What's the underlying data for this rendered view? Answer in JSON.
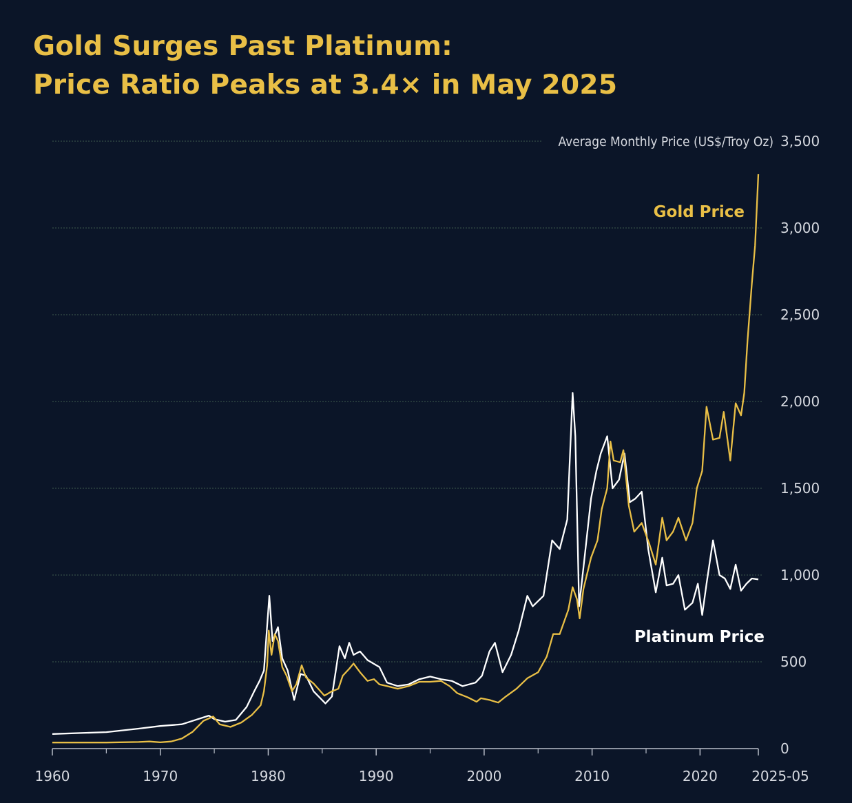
{
  "title": {
    "line1": "Gold Surges Past Platinum:",
    "line2": "Price Ratio Peaks at 3.4× in May 2025"
  },
  "colors": {
    "background": "#0b1528",
    "gold": "#e9bf46",
    "platinum": "#ffffff",
    "grid": "#3f5a4e",
    "text": "#d6d9e0"
  },
  "chart_data": {
    "type": "line",
    "title": "Gold Surges Past Platinum: Price Ratio Peaks at 3.4× in May 2025",
    "ylabel": "Average Monthly Price (US$/Troy Oz)",
    "xlabel": "",
    "xlim": [
      1960,
      2025.4
    ],
    "ylim": [
      0,
      3500
    ],
    "grid": true,
    "y_ticks": [
      0,
      500,
      1000,
      1500,
      2000,
      2500,
      3000,
      3500
    ],
    "y_tick_labels": [
      "0",
      "500",
      "1,000",
      "1,500",
      "2,000",
      "2,500",
      "3,000",
      "3,500"
    ],
    "x_ticks": [
      1960,
      1970,
      1980,
      1990,
      2000,
      2010,
      2020,
      2025.4
    ],
    "x_tick_labels": [
      "1960",
      "1970",
      "1980",
      "1990",
      "2000",
      "2010",
      "2020",
      "2025-05"
    ],
    "x_minor_ticks": [
      1965,
      1975,
      1985,
      1995,
      2005,
      2015
    ],
    "series": [
      {
        "name": "Gold Price",
        "points": [
          [
            1960,
            35
          ],
          [
            1965,
            35
          ],
          [
            1968,
            38
          ],
          [
            1969,
            41
          ],
          [
            1970,
            36
          ],
          [
            1971,
            41
          ],
          [
            1972,
            58
          ],
          [
            1973,
            97
          ],
          [
            1974,
            160
          ],
          [
            1974.9,
            185
          ],
          [
            1975.5,
            140
          ],
          [
            1976.5,
            125
          ],
          [
            1977.5,
            150
          ],
          [
            1978.5,
            195
          ],
          [
            1979.3,
            250
          ],
          [
            1979.6,
            330
          ],
          [
            1979.9,
            480
          ],
          [
            1980.05,
            680
          ],
          [
            1980.3,
            540
          ],
          [
            1980.6,
            660
          ],
          [
            1980.9,
            620
          ],
          [
            1981.3,
            470
          ],
          [
            1981.7,
            420
          ],
          [
            1982.2,
            330
          ],
          [
            1982.6,
            370
          ],
          [
            1983.1,
            480
          ],
          [
            1983.5,
            410
          ],
          [
            1984.2,
            375
          ],
          [
            1985.2,
            305
          ],
          [
            1985.9,
            330
          ],
          [
            1986.5,
            345
          ],
          [
            1986.9,
            420
          ],
          [
            1987.5,
            460
          ],
          [
            1987.9,
            490
          ],
          [
            1988.5,
            440
          ],
          [
            1989.2,
            390
          ],
          [
            1989.8,
            400
          ],
          [
            1990.3,
            370
          ],
          [
            1991,
            360
          ],
          [
            1992,
            345
          ],
          [
            1993,
            360
          ],
          [
            1994,
            385
          ],
          [
            1995,
            385
          ],
          [
            1996,
            390
          ],
          [
            1996.8,
            360
          ],
          [
            1997.5,
            320
          ],
          [
            1998.5,
            295
          ],
          [
            1999.3,
            270
          ],
          [
            1999.7,
            290
          ],
          [
            2000.5,
            280
          ],
          [
            2001.3,
            265
          ],
          [
            2002,
            300
          ],
          [
            2003,
            345
          ],
          [
            2004,
            405
          ],
          [
            2005,
            440
          ],
          [
            2005.8,
            530
          ],
          [
            2006.4,
            660
          ],
          [
            2007,
            660
          ],
          [
            2007.8,
            800
          ],
          [
            2008.2,
            930
          ],
          [
            2008.6,
            860
          ],
          [
            2008.85,
            750
          ],
          [
            2009.2,
            920
          ],
          [
            2009.9,
            1100
          ],
          [
            2010.5,
            1200
          ],
          [
            2010.9,
            1380
          ],
          [
            2011.4,
            1500
          ],
          [
            2011.7,
            1770
          ],
          [
            2012,
            1660
          ],
          [
            2012.6,
            1650
          ],
          [
            2012.9,
            1720
          ],
          [
            2013.4,
            1400
          ],
          [
            2013.9,
            1250
          ],
          [
            2014.6,
            1300
          ],
          [
            2015.3,
            1180
          ],
          [
            2015.9,
            1060
          ],
          [
            2016.5,
            1330
          ],
          [
            2016.9,
            1200
          ],
          [
            2017.5,
            1250
          ],
          [
            2018,
            1330
          ],
          [
            2018.7,
            1200
          ],
          [
            2019.3,
            1300
          ],
          [
            2019.7,
            1500
          ],
          [
            2020.2,
            1600
          ],
          [
            2020.6,
            1970
          ],
          [
            2021.2,
            1780
          ],
          [
            2021.8,
            1790
          ],
          [
            2022.2,
            1940
          ],
          [
            2022.8,
            1660
          ],
          [
            2023.3,
            1990
          ],
          [
            2023.8,
            1920
          ],
          [
            2024.1,
            2050
          ],
          [
            2024.4,
            2350
          ],
          [
            2024.8,
            2680
          ],
          [
            2025.1,
            2900
          ],
          [
            2025.4,
            3310
          ]
        ]
      },
      {
        "name": "Platinum Price",
        "points": [
          [
            1960,
            84
          ],
          [
            1965,
            95
          ],
          [
            1968,
            115
          ],
          [
            1970,
            130
          ],
          [
            1972,
            140
          ],
          [
            1973,
            160
          ],
          [
            1974.5,
            190
          ],
          [
            1975,
            170
          ],
          [
            1976,
            155
          ],
          [
            1977,
            165
          ],
          [
            1978,
            240
          ],
          [
            1978.7,
            330
          ],
          [
            1979.2,
            390
          ],
          [
            1979.6,
            450
          ],
          [
            1980.1,
            880
          ],
          [
            1980.4,
            620
          ],
          [
            1980.9,
            700
          ],
          [
            1981.3,
            520
          ],
          [
            1981.8,
            450
          ],
          [
            1982.4,
            280
          ],
          [
            1983,
            430
          ],
          [
            1983.5,
            420
          ],
          [
            1984.2,
            330
          ],
          [
            1985.3,
            260
          ],
          [
            1985.9,
            300
          ],
          [
            1986.6,
            590
          ],
          [
            1987.1,
            520
          ],
          [
            1987.5,
            610
          ],
          [
            1987.9,
            540
          ],
          [
            1988.5,
            560
          ],
          [
            1989.2,
            510
          ],
          [
            1990.3,
            470
          ],
          [
            1991,
            380
          ],
          [
            1992,
            360
          ],
          [
            1993,
            370
          ],
          [
            1994,
            400
          ],
          [
            1995,
            415
          ],
          [
            1996,
            400
          ],
          [
            1997,
            390
          ],
          [
            1998,
            360
          ],
          [
            1999.2,
            380
          ],
          [
            1999.8,
            420
          ],
          [
            2000.5,
            560
          ],
          [
            2001,
            610
          ],
          [
            2001.7,
            440
          ],
          [
            2002.5,
            540
          ],
          [
            2003.2,
            680
          ],
          [
            2004,
            880
          ],
          [
            2004.5,
            820
          ],
          [
            2005.5,
            880
          ],
          [
            2006.3,
            1200
          ],
          [
            2007,
            1150
          ],
          [
            2007.7,
            1320
          ],
          [
            2008.2,
            2050
          ],
          [
            2008.45,
            1800
          ],
          [
            2008.8,
            820
          ],
          [
            2009.3,
            1100
          ],
          [
            2009.9,
            1440
          ],
          [
            2010.4,
            1600
          ],
          [
            2010.8,
            1700
          ],
          [
            2011.4,
            1800
          ],
          [
            2011.9,
            1500
          ],
          [
            2012.5,
            1550
          ],
          [
            2013,
            1700
          ],
          [
            2013.5,
            1420
          ],
          [
            2014,
            1440
          ],
          [
            2014.6,
            1480
          ],
          [
            2015.2,
            1150
          ],
          [
            2015.9,
            900
          ],
          [
            2016.5,
            1100
          ],
          [
            2016.9,
            940
          ],
          [
            2017.5,
            950
          ],
          [
            2018,
            1000
          ],
          [
            2018.6,
            800
          ],
          [
            2019.3,
            840
          ],
          [
            2019.8,
            950
          ],
          [
            2020.2,
            770
          ],
          [
            2020.6,
            950
          ],
          [
            2021.2,
            1200
          ],
          [
            2021.8,
            1000
          ],
          [
            2022.3,
            980
          ],
          [
            2022.8,
            920
          ],
          [
            2023.3,
            1060
          ],
          [
            2023.8,
            910
          ],
          [
            2024.3,
            950
          ],
          [
            2024.8,
            980
          ],
          [
            2025.4,
            975
          ]
        ]
      }
    ],
    "annotations": [
      "Gold Price",
      "Platinum Price"
    ]
  }
}
